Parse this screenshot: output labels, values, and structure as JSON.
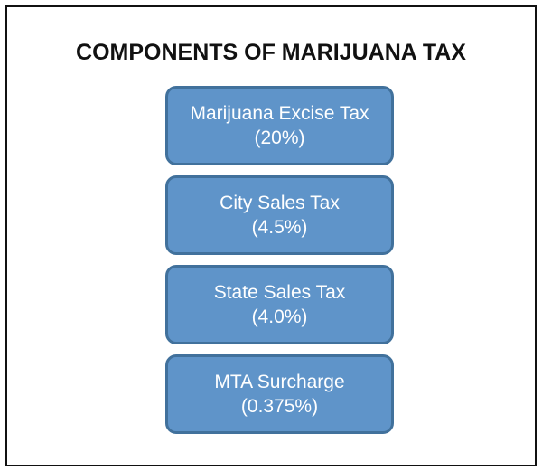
{
  "title": "COMPONENTS OF MARIJUANA TAX",
  "components": [
    {
      "name": "Marijuana Excise Tax",
      "rate": "(20%)"
    },
    {
      "name": "City Sales Tax",
      "rate": "(4.5%)"
    },
    {
      "name": "State Sales Tax",
      "rate": "(4.0%)"
    },
    {
      "name": "MTA Surcharge",
      "rate": "(0.375%)"
    }
  ]
}
